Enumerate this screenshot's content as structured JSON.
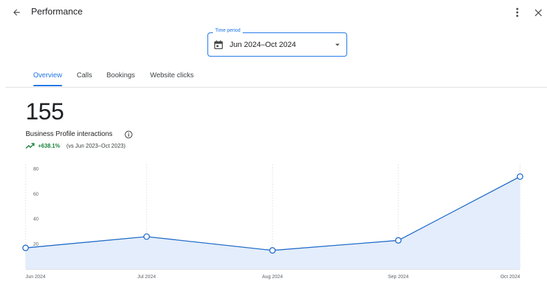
{
  "header": {
    "title": "Performance"
  },
  "time_period": {
    "label": "Time period",
    "value": "Jun 2024–Oct 2024"
  },
  "tabs": [
    {
      "label": "Overview",
      "active": true
    },
    {
      "label": "Calls",
      "active": false
    },
    {
      "label": "Bookings",
      "active": false
    },
    {
      "label": "Website clicks",
      "active": false
    }
  ],
  "metric": {
    "value": "155",
    "label": "Business Profile interactions",
    "change": "+638.1%",
    "comparison": "(vs Jun 2023–Oct 2023)"
  },
  "icons": {
    "back": "arrow-back-icon",
    "more": "more-vert-icon",
    "close": "close-icon",
    "calendar": "calendar-icon",
    "caret": "dropdown-caret-icon",
    "info": "info-icon",
    "trend": "trending-up-icon"
  },
  "colors": {
    "accent": "#1a73e8",
    "positive": "#188038",
    "area": "#e3edfb",
    "line": "#1c68c8"
  },
  "chart_data": {
    "type": "area",
    "categories": [
      "Jun 2024",
      "Jul 2024",
      "Aug 2024",
      "Sep 2024",
      "Oct 2024"
    ],
    "series": [
      {
        "values": [
          17,
          26,
          15,
          23,
          74
        ]
      }
    ],
    "y_ticks": [
      20,
      40,
      60,
      80
    ],
    "ylim": [
      0,
      80
    ],
    "grid": "vertical dashed at each category",
    "xlabel": "",
    "ylabel": ""
  }
}
